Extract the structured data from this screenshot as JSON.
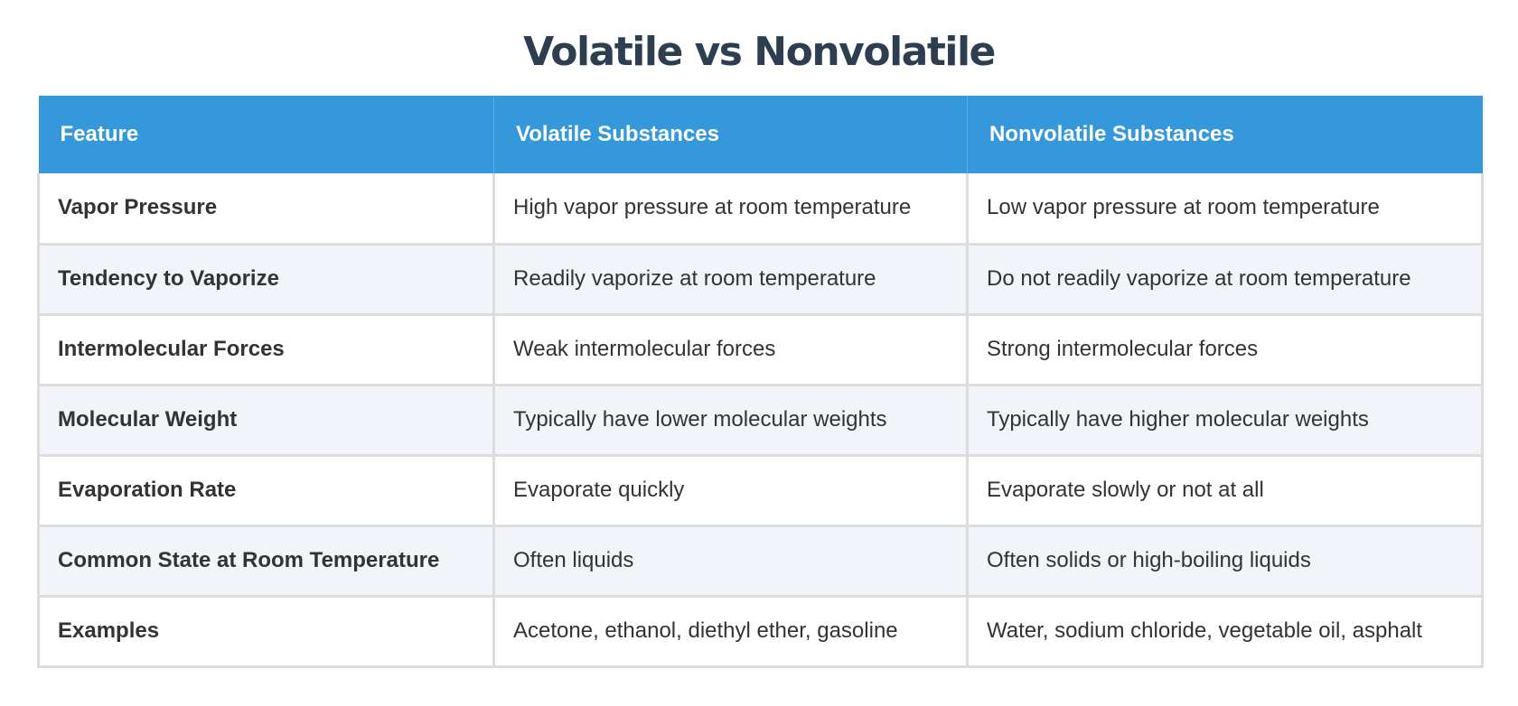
{
  "title": "Volatile vs Nonvolatile",
  "colors": {
    "header_bg": "#3498db",
    "header_text": "#ffffff",
    "title_text": "#2c3e50",
    "body_text": "#333333",
    "row_alt_bg": "#f1f4f9",
    "border": "#dddddd"
  },
  "table": {
    "headers": [
      "Feature",
      "Volatile Substances",
      "Nonvolatile Substances"
    ],
    "rows": [
      {
        "feature": "Vapor Pressure",
        "volatile": "High vapor pressure at room temperature",
        "nonvolatile": "Low vapor pressure at room temperature"
      },
      {
        "feature": "Tendency to Vaporize",
        "volatile": "Readily vaporize at room temperature",
        "nonvolatile": "Do not readily vaporize at room temperature"
      },
      {
        "feature": "Intermolecular Forces",
        "volatile": "Weak intermolecular forces",
        "nonvolatile": "Strong intermolecular forces"
      },
      {
        "feature": "Molecular Weight",
        "volatile": "Typically have lower molecular weights",
        "nonvolatile": "Typically have higher molecular weights"
      },
      {
        "feature": "Evaporation Rate",
        "volatile": "Evaporate quickly",
        "nonvolatile": "Evaporate slowly or not at all"
      },
      {
        "feature": "Common State at Room Temperature",
        "volatile": "Often liquids",
        "nonvolatile": "Often solids or high-boiling liquids"
      },
      {
        "feature": "Examples",
        "volatile": "Acetone, ethanol, diethyl ether, gasoline",
        "nonvolatile": "Water, sodium chloride, vegetable oil, asphalt"
      }
    ]
  }
}
